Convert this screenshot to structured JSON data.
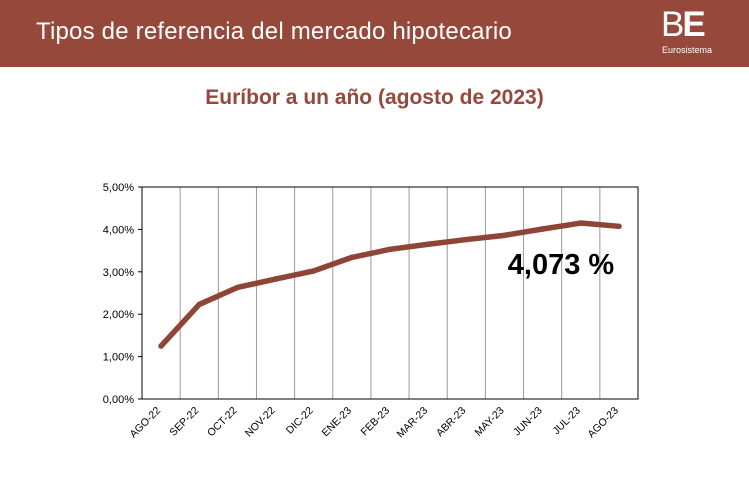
{
  "header": {
    "title": "Tipos de referencia del mercado hipotecario",
    "logo_mark_b": "B",
    "logo_mark_e": "E",
    "logo_sub": "Eurosistema"
  },
  "colors": {
    "header_bg": "#96483a",
    "line": "#8f4536",
    "grid": "#9a9a9a"
  },
  "chart_data": {
    "type": "line",
    "title": "Euríbor a un año (agosto de 2023)",
    "xlabel": "",
    "ylabel": "",
    "categories": [
      "AGO-22",
      "SEP-22",
      "OCT-22",
      "NOV-22",
      "DIC-22",
      "ENE-23",
      "FEB-23",
      "MAR-23",
      "ABR-23",
      "MAY-23",
      "JUN-23",
      "JUL-23",
      "AGO-23"
    ],
    "series": [
      {
        "values": [
          1.25,
          2.23,
          2.63,
          2.83,
          3.02,
          3.34,
          3.53,
          3.65,
          3.76,
          3.86,
          4.01,
          4.15,
          4.073
        ]
      }
    ],
    "ylim": [
      0,
      5
    ],
    "yticks": [
      "0,00%",
      "1,00%",
      "2,00%",
      "3,00%",
      "4,00%",
      "5,00%"
    ],
    "grid": "vertical",
    "annotation": "4,073 %"
  }
}
